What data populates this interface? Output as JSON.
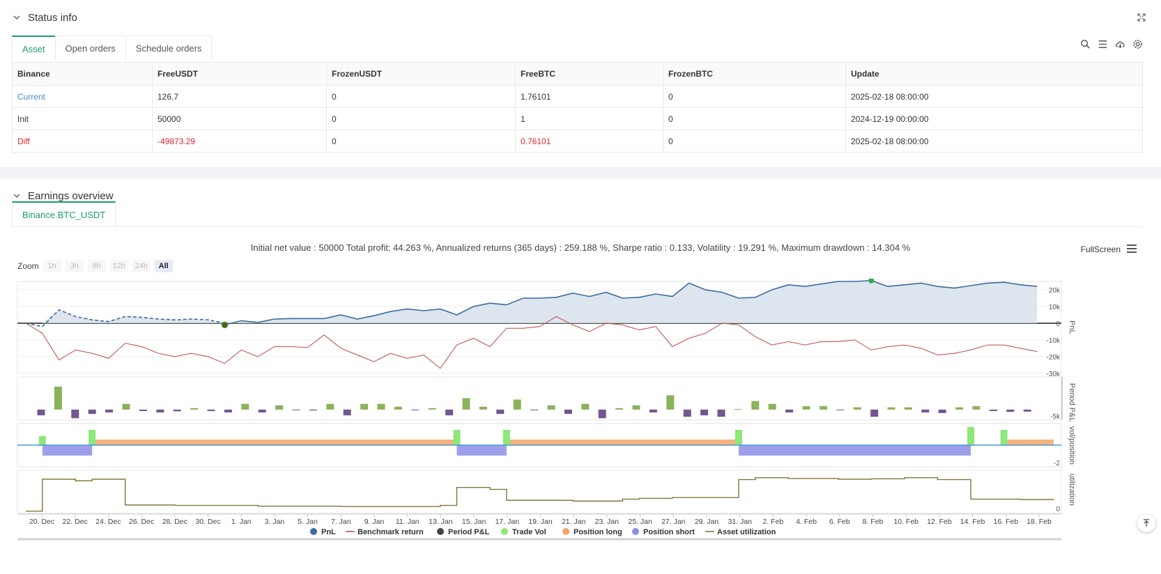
{
  "status_panel": {
    "title": "Status info",
    "tabs": [
      {
        "label": "Asset",
        "active": true
      },
      {
        "label": "Open orders",
        "active": false
      },
      {
        "label": "Schedule orders",
        "active": false
      }
    ],
    "table": {
      "headers": [
        "Binance",
        "FreeUSDT",
        "FrozenUSDT",
        "FreeBTC",
        "FrozenBTC",
        "Update"
      ],
      "rows": [
        [
          "Current",
          "126.7",
          "0",
          "1.76101",
          "0",
          "2025-02-18 08:00:00"
        ],
        [
          "Init",
          "50000",
          "0",
          "1",
          "0",
          "2024-12-19 00:00:00"
        ],
        [
          "Diff",
          "-49873.29",
          "0",
          "0.76101",
          "0",
          "2025-02-18 08:00:00"
        ]
      ]
    },
    "icons": [
      "search-icon",
      "list-icon",
      "cloud-download-icon",
      "gear-icon"
    ]
  },
  "earnings_panel": {
    "title": "Earnings overview",
    "tab": "Binance.BTC_USDT",
    "summary": "Initial net value : 50000 Total profit: 44.263 %, Annualized returns (365 days) : 259.188 %, Sharpe ratio : 0.133, Volatility : 19.291 %, Maximum drawdown : 14.304 %",
    "fullscreen_label": "FullScreen",
    "zoom": {
      "label": "Zoom",
      "buttons": [
        {
          "label": "1h",
          "active": false
        },
        {
          "label": "3h",
          "active": false
        },
        {
          "label": "8h",
          "active": false
        },
        {
          "label": "12h",
          "active": false
        },
        {
          "label": "24h",
          "active": false
        },
        {
          "label": "All",
          "active": true
        }
      ]
    }
  },
  "chart_data": {
    "type": "line",
    "x_ticks": [
      "20. Dec",
      "22. Dec",
      "24. Dec",
      "26. Dec",
      "28. Dec",
      "30. Dec",
      "1. Jan",
      "3. Jan",
      "5. Jan",
      "7. Jan",
      "9. Jan",
      "11. Jan",
      "13. Jan",
      "15. Jan",
      "17. Jan",
      "19. Jan",
      "21. Jan",
      "23. Jan",
      "25. Jan",
      "27. Jan",
      "29. Jan",
      "31. Jan",
      "2. Feb",
      "4. Feb",
      "6. Feb",
      "8. Feb",
      "10. Feb",
      "12. Feb",
      "14. Feb",
      "16. Feb",
      "18. Feb"
    ],
    "x_start": "2024-12-19",
    "x_end": "2025-02-18",
    "pnl_axis": {
      "ticks": [
        "20k",
        "10k",
        "0",
        "-10k",
        "-20k",
        "-30k"
      ],
      "label": "PnL",
      "ylim": [
        -30000,
        25000
      ]
    },
    "period_axis": {
      "ticks": [
        "-5k"
      ],
      "label": "Period P&L"
    },
    "position_axis": {
      "ticks": [
        "-2"
      ],
      "label": "vol/position"
    },
    "util_axis": {
      "ticks": [
        "0"
      ],
      "label": "utilization"
    },
    "pnl_dashed": [
      0,
      -2000,
      8000,
      4000,
      2000,
      1000,
      4000,
      3500,
      2500,
      2000,
      2500,
      2000,
      0
    ],
    "pnl_solid": [
      0,
      -3000,
      8000,
      4000,
      2000,
      1000,
      4000,
      3500,
      2500,
      2000,
      2500,
      1500,
      -1000,
      1500,
      500,
      2500,
      2800,
      2800,
      2800,
      5000,
      2500,
      4500,
      7000,
      8500,
      7500,
      8500,
      5000,
      10000,
      12000,
      11000,
      15000,
      15000,
      15500,
      18000,
      16000,
      18500,
      15000,
      15500,
      17500,
      16000,
      24000,
      20000,
      18500,
      15000,
      15500,
      20000,
      23000,
      22000,
      23500,
      25000,
      25000,
      25500,
      22000,
      23000,
      24000,
      22000,
      21000,
      22500,
      24000,
      24500,
      23000,
      22000
    ],
    "benchmark": [
      0,
      -6000,
      -22000,
      -16000,
      -18000,
      -21000,
      -12000,
      -14000,
      -18000,
      -20000,
      -18000,
      -20000,
      -24000,
      -16000,
      -20000,
      -14000,
      -14000,
      -14500,
      -7000,
      -15000,
      -19000,
      -23000,
      -18000,
      -21000,
      -19000,
      -27000,
      -13000,
      -9000,
      -14000,
      -3000,
      -3000,
      -2000,
      4000,
      -1000,
      -5000,
      0,
      -1000,
      -4000,
      -2000,
      -14000,
      -9000,
      -6000,
      0,
      -1000,
      -8000,
      -13000,
      -11000,
      -13000,
      -11000,
      -11000,
      -10000,
      -16000,
      -14000,
      -13000,
      -15000,
      -19000,
      -18000,
      -16000,
      -13000,
      -13000,
      -15000,
      -17000
    ],
    "period_pnl": [
      -2000,
      8000,
      -3000,
      -1500,
      -1000,
      2000,
      -500,
      -1000,
      -600,
      500,
      -500,
      -1000,
      2000,
      -1000,
      1500,
      -200,
      -300,
      2000,
      -2000,
      2000,
      2000,
      1000,
      -200,
      500,
      -2000,
      4000,
      1000,
      -1500,
      3500,
      -200,
      1500,
      -1500,
      2000,
      -3000,
      500,
      1500,
      -1000,
      5000,
      -2500,
      -2000,
      -2500,
      200,
      3000,
      2000,
      -1000,
      1200,
      1200,
      -200,
      800,
      -2500,
      800,
      800,
      -1000,
      -1200,
      800,
      1200,
      -500,
      -800,
      -700
    ],
    "trade_vol_days": [
      1,
      4,
      26,
      29,
      43,
      57,
      59
    ],
    "position_long": [
      [
        4,
        26
      ],
      [
        29,
        43
      ],
      [
        59,
        62
      ]
    ],
    "position_short": [
      [
        1,
        4
      ],
      [
        26,
        29
      ],
      [
        43,
        57
      ]
    ],
    "utilization_steps": [
      [
        0,
        2
      ],
      [
        1,
        84
      ],
      [
        3,
        80
      ],
      [
        4,
        84
      ],
      [
        6,
        18
      ],
      [
        9,
        17
      ],
      [
        14,
        15
      ],
      [
        19,
        14
      ],
      [
        25,
        17
      ],
      [
        26,
        63
      ],
      [
        28,
        58
      ],
      [
        29,
        30
      ],
      [
        33,
        28
      ],
      [
        36,
        33
      ],
      [
        37,
        35
      ],
      [
        39,
        37
      ],
      [
        43,
        83
      ],
      [
        44,
        88
      ],
      [
        46,
        86
      ],
      [
        49,
        84
      ],
      [
        51,
        85
      ],
      [
        53,
        88
      ],
      [
        55,
        83
      ],
      [
        57,
        33
      ],
      [
        60,
        32
      ],
      [
        62,
        31
      ]
    ],
    "legend": [
      {
        "name": "PnL",
        "color": "#3d6aa2",
        "kind": "dot"
      },
      {
        "name": "Benchmark return",
        "color": "#b84a45",
        "kind": "line"
      },
      {
        "name": "Period P&L",
        "color": "#444444",
        "kind": "dot"
      },
      {
        "name": "Trade Vol",
        "color": "#8de87a",
        "kind": "dot"
      },
      {
        "name": "Position long",
        "color": "#f5a466",
        "kind": "dot"
      },
      {
        "name": "Position short",
        "color": "#8d8ee8",
        "kind": "dot"
      },
      {
        "name": "Asset utilization",
        "color": "#7a6a2a",
        "kind": "line"
      }
    ]
  },
  "colors": {
    "accent": "#1a9e6a",
    "link": "#3a8ed1",
    "negative": "#e0262b"
  }
}
